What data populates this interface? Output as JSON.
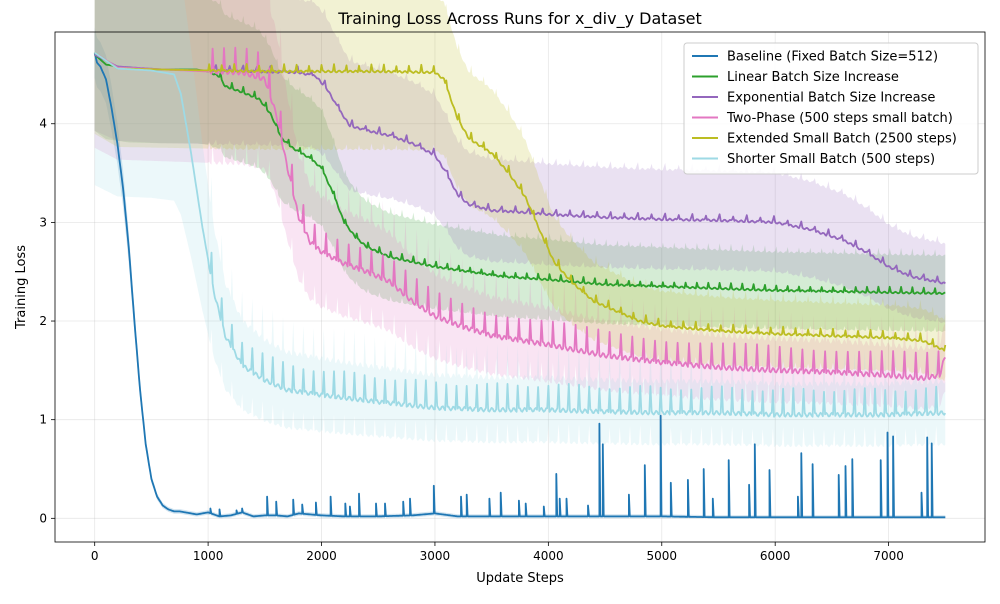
{
  "chart_data": {
    "type": "line",
    "title": "Training Loss Across Runs for x_div_y Dataset",
    "xlabel": "Update Steps",
    "ylabel": "Training Loss",
    "xlim": [
      -350,
      7850
    ],
    "ylim": [
      -0.24,
      4.93
    ],
    "xticks": [
      0,
      1000,
      2000,
      3000,
      4000,
      5000,
      6000,
      7000
    ],
    "yticks": [
      0,
      1,
      2,
      3,
      4
    ],
    "grid": true,
    "legend_position": "upper right",
    "series": [
      {
        "name": "Baseline (Fixed Batch Size=512)",
        "color": "#1f77b4",
        "band_fraction": 0.05,
        "points": [
          [
            0,
            4.72
          ],
          [
            20,
            4.62
          ],
          [
            50,
            4.58
          ],
          [
            100,
            4.45
          ],
          [
            150,
            4.15
          ],
          [
            200,
            3.8
          ],
          [
            250,
            3.35
          ],
          [
            300,
            2.75
          ],
          [
            350,
            2.0
          ],
          [
            400,
            1.3
          ],
          [
            450,
            0.75
          ],
          [
            500,
            0.4
          ],
          [
            550,
            0.22
          ],
          [
            600,
            0.13
          ],
          [
            650,
            0.09
          ],
          [
            700,
            0.07
          ],
          [
            750,
            0.07
          ],
          [
            800,
            0.06
          ],
          [
            900,
            0.04
          ],
          [
            1000,
            0.06
          ],
          [
            1100,
            0.02
          ],
          [
            1200,
            0.03
          ],
          [
            1300,
            0.06
          ],
          [
            1400,
            0.02
          ],
          [
            1500,
            0.03
          ],
          [
            1600,
            0.03
          ],
          [
            1700,
            0.02
          ],
          [
            1800,
            0.05
          ],
          [
            2000,
            0.03
          ],
          [
            2200,
            0.02
          ],
          [
            2500,
            0.02
          ],
          [
            2800,
            0.03
          ],
          [
            3000,
            0.05
          ],
          [
            3200,
            0.02
          ],
          [
            3500,
            0.02
          ],
          [
            4000,
            0.02
          ],
          [
            4500,
            0.02
          ],
          [
            5000,
            0.02
          ],
          [
            5500,
            0.01
          ],
          [
            6000,
            0.01
          ],
          [
            6500,
            0.01
          ],
          [
            7000,
            0.01
          ],
          [
            7500,
            0.01
          ]
        ],
        "spikes": [
          [
            1020,
            0.1
          ],
          [
            1100,
            0.09
          ],
          [
            1250,
            0.08
          ],
          [
            1300,
            0.1
          ],
          [
            1520,
            0.22
          ],
          [
            1600,
            0.17
          ],
          [
            1750,
            0.19
          ],
          [
            1830,
            0.14
          ],
          [
            1950,
            0.16
          ],
          [
            2080,
            0.22
          ],
          [
            2210,
            0.15
          ],
          [
            2250,
            0.12
          ],
          [
            2330,
            0.25
          ],
          [
            2480,
            0.15
          ],
          [
            2560,
            0.15
          ],
          [
            2720,
            0.17
          ],
          [
            2780,
            0.2
          ],
          [
            2990,
            0.33
          ],
          [
            3230,
            0.22
          ],
          [
            3280,
            0.24
          ],
          [
            3480,
            0.2
          ],
          [
            3580,
            0.26
          ],
          [
            3740,
            0.18
          ],
          [
            3800,
            0.15
          ],
          [
            3960,
            0.12
          ],
          [
            4070,
            0.45
          ],
          [
            4100,
            0.2
          ],
          [
            4160,
            0.2
          ],
          [
            4350,
            0.13
          ],
          [
            4450,
            0.96
          ],
          [
            4480,
            0.75
          ],
          [
            4710,
            0.24
          ],
          [
            4850,
            0.54
          ],
          [
            4990,
            1.04
          ],
          [
            5080,
            0.36
          ],
          [
            5230,
            0.39
          ],
          [
            5370,
            0.5
          ],
          [
            5450,
            0.2
          ],
          [
            5590,
            0.59
          ],
          [
            5770,
            0.34
          ],
          [
            5820,
            0.75
          ],
          [
            5950,
            0.49
          ],
          [
            6200,
            0.22
          ],
          [
            6230,
            0.66
          ],
          [
            6330,
            0.55
          ],
          [
            6560,
            0.44
          ],
          [
            6620,
            0.53
          ],
          [
            6680,
            0.6
          ],
          [
            6930,
            0.59
          ],
          [
            6990,
            0.87
          ],
          [
            7040,
            0.83
          ],
          [
            7290,
            0.26
          ],
          [
            7340,
            0.82
          ],
          [
            7380,
            0.76
          ]
        ]
      },
      {
        "name": "Linear Batch Size Increase",
        "color": "#2ca02c",
        "band_fraction": 0.16,
        "points": [
          [
            0,
            4.7
          ],
          [
            100,
            4.6
          ],
          [
            300,
            4.56
          ],
          [
            600,
            4.55
          ],
          [
            900,
            4.55
          ],
          [
            1000,
            4.53
          ],
          [
            1100,
            4.48
          ],
          [
            1150,
            4.38
          ],
          [
            1300,
            4.32
          ],
          [
            1450,
            4.25
          ],
          [
            1550,
            4.1
          ],
          [
            1650,
            3.85
          ],
          [
            1750,
            3.75
          ],
          [
            1900,
            3.65
          ],
          [
            2000,
            3.55
          ],
          [
            2100,
            3.3
          ],
          [
            2200,
            3.0
          ],
          [
            2300,
            2.85
          ],
          [
            2400,
            2.75
          ],
          [
            2500,
            2.7
          ],
          [
            2600,
            2.65
          ],
          [
            2800,
            2.6
          ],
          [
            3000,
            2.55
          ],
          [
            3300,
            2.5
          ],
          [
            3600,
            2.45
          ],
          [
            4000,
            2.42
          ],
          [
            4500,
            2.37
          ],
          [
            5000,
            2.35
          ],
          [
            5500,
            2.33
          ],
          [
            6000,
            2.31
          ],
          [
            6500,
            2.3
          ],
          [
            7000,
            2.29
          ],
          [
            7500,
            2.28
          ]
        ],
        "spike_every": 100,
        "spike_amp": 0.1
      },
      {
        "name": "Exponential Batch Size Increase",
        "color": "#9467bd",
        "band_fraction": 0.16,
        "points": [
          [
            0,
            4.7
          ],
          [
            200,
            4.58
          ],
          [
            600,
            4.55
          ],
          [
            1000,
            4.54
          ],
          [
            1400,
            4.53
          ],
          [
            1800,
            4.52
          ],
          [
            1950,
            4.48
          ],
          [
            2050,
            4.35
          ],
          [
            2150,
            4.15
          ],
          [
            2250,
            3.98
          ],
          [
            2400,
            3.93
          ],
          [
            2600,
            3.88
          ],
          [
            2800,
            3.8
          ],
          [
            3000,
            3.68
          ],
          [
            3100,
            3.5
          ],
          [
            3200,
            3.28
          ],
          [
            3300,
            3.18
          ],
          [
            3500,
            3.12
          ],
          [
            3800,
            3.1
          ],
          [
            4000,
            3.08
          ],
          [
            4500,
            3.05
          ],
          [
            5000,
            3.03
          ],
          [
            5500,
            3.02
          ],
          [
            6000,
            3.0
          ],
          [
            6300,
            2.93
          ],
          [
            6600,
            2.82
          ],
          [
            6800,
            2.7
          ],
          [
            7000,
            2.55
          ],
          [
            7200,
            2.45
          ],
          [
            7500,
            2.38
          ]
        ],
        "spike_every": 120,
        "spike_amp": 0.12
      },
      {
        "name": "Two-Phase (500 steps small batch)",
        "color": "#e377c2",
        "band_fraction": 0.2,
        "points": [
          [
            0,
            4.72
          ],
          [
            200,
            4.57
          ],
          [
            600,
            4.55
          ],
          [
            1000,
            4.53
          ],
          [
            1300,
            4.52
          ],
          [
            1500,
            4.45
          ],
          [
            1600,
            4.1
          ],
          [
            1700,
            3.55
          ],
          [
            1800,
            3.05
          ],
          [
            1900,
            2.8
          ],
          [
            2000,
            2.7
          ],
          [
            2200,
            2.58
          ],
          [
            2400,
            2.5
          ],
          [
            2600,
            2.4
          ],
          [
            2800,
            2.2
          ],
          [
            3000,
            2.05
          ],
          [
            3200,
            1.96
          ],
          [
            3500,
            1.85
          ],
          [
            4000,
            1.76
          ],
          [
            4500,
            1.65
          ],
          [
            5000,
            1.58
          ],
          [
            5500,
            1.53
          ],
          [
            6000,
            1.5
          ],
          [
            6500,
            1.48
          ],
          [
            7000,
            1.45
          ],
          [
            7300,
            1.42
          ],
          [
            7450,
            1.45
          ],
          [
            7500,
            1.65
          ]
        ],
        "spike_every": 100,
        "spike_amp": 0.28
      },
      {
        "name": "Extended Small Batch (2500 steps)",
        "color": "#bcbd22",
        "band_fraction": 0.17,
        "points": [
          [
            0,
            4.72
          ],
          [
            200,
            4.56
          ],
          [
            600,
            4.55
          ],
          [
            1000,
            4.54
          ],
          [
            1500,
            4.53
          ],
          [
            2000,
            4.53
          ],
          [
            2500,
            4.53
          ],
          [
            3000,
            4.52
          ],
          [
            3080,
            4.45
          ],
          [
            3200,
            4.05
          ],
          [
            3300,
            3.85
          ],
          [
            3500,
            3.7
          ],
          [
            3650,
            3.5
          ],
          [
            3800,
            3.25
          ],
          [
            3950,
            2.85
          ],
          [
            4050,
            2.6
          ],
          [
            4200,
            2.4
          ],
          [
            4400,
            2.2
          ],
          [
            4600,
            2.1
          ],
          [
            4800,
            2.0
          ],
          [
            5000,
            1.95
          ],
          [
            5500,
            1.9
          ],
          [
            6000,
            1.87
          ],
          [
            6500,
            1.85
          ],
          [
            7000,
            1.83
          ],
          [
            7300,
            1.8
          ],
          [
            7500,
            1.7
          ]
        ],
        "spike_every": 110,
        "spike_amp": 0.12
      },
      {
        "name": "Shorter Small Batch (500 steps)",
        "color": "#9edae5",
        "band_fraction": 0.28,
        "points": [
          [
            0,
            4.72
          ],
          [
            200,
            4.56
          ],
          [
            500,
            4.54
          ],
          [
            700,
            4.5
          ],
          [
            760,
            4.3
          ],
          [
            850,
            3.7
          ],
          [
            950,
            2.95
          ],
          [
            1050,
            2.3
          ],
          [
            1150,
            1.85
          ],
          [
            1300,
            1.55
          ],
          [
            1500,
            1.4
          ],
          [
            1700,
            1.3
          ],
          [
            2000,
            1.25
          ],
          [
            2500,
            1.18
          ],
          [
            3000,
            1.12
          ],
          [
            3500,
            1.1
          ],
          [
            4000,
            1.1
          ],
          [
            4500,
            1.08
          ],
          [
            5000,
            1.07
          ],
          [
            5500,
            1.07
          ],
          [
            6000,
            1.05
          ],
          [
            6500,
            1.05
          ],
          [
            7000,
            1.05
          ],
          [
            7500,
            1.07
          ]
        ],
        "spike_every": 90,
        "spike_amp": 0.25
      }
    ]
  }
}
